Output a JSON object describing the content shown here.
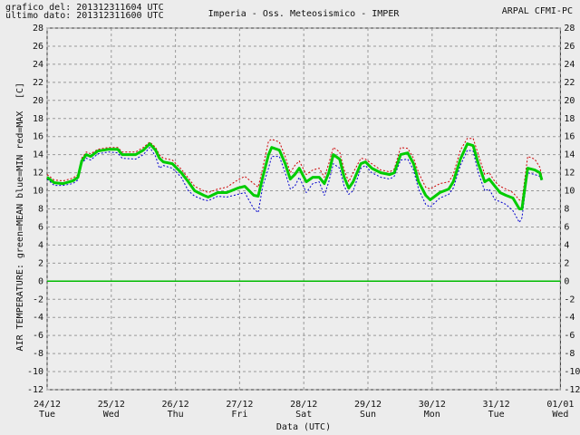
{
  "chart_data": {
    "type": "line",
    "title": "Imperia - Oss. Meteosismico - IMPER",
    "header_left": [
      "grafico del: 201312311604 UTC",
      "ultimo dato: 201312311600 UTC"
    ],
    "header_right": "ARPAL CFMI-PC",
    "y_label": "AIR TEMPERATURE: green=MEAN  blue=MIN  red=MAX",
    "y_unit": "[C]",
    "x_label": "Data (UTC)",
    "xlim": [
      0,
      8
    ],
    "xticks": [
      {
        "value": 0,
        "label": "24/12",
        "sublabel": "Tue"
      },
      {
        "value": 1,
        "label": "25/12",
        "sublabel": "Wed"
      },
      {
        "value": 2,
        "label": "26/12",
        "sublabel": "Thu"
      },
      {
        "value": 3,
        "label": "27/12",
        "sublabel": "Fri"
      },
      {
        "value": 4,
        "label": "28/12",
        "sublabel": "Sat"
      },
      {
        "value": 5,
        "label": "29/12",
        "sublabel": "Sun"
      },
      {
        "value": 6,
        "label": "30/12",
        "sublabel": "Mon"
      },
      {
        "value": 7,
        "label": "31/12",
        "sublabel": "Tue"
      },
      {
        "value": 8,
        "label": "01/01",
        "sublabel": "Wed"
      }
    ],
    "ylim": [
      -12,
      28
    ],
    "yticks": [
      -12,
      -10,
      -8,
      -6,
      -4,
      -2,
      0,
      2,
      4,
      6,
      8,
      10,
      12,
      14,
      16,
      18,
      20,
      22,
      24,
      26,
      28
    ],
    "grid": true,
    "reference_line": {
      "value": 0,
      "color": "#00bb00"
    },
    "x": [
      0,
      0.11,
      0.25,
      0.4,
      0.48,
      0.54,
      0.61,
      0.68,
      0.79,
      0.96,
      1.1,
      1.17,
      1.38,
      1.5,
      1.6,
      1.69,
      1.75,
      1.81,
      1.95,
      2.09,
      2.2,
      2.3,
      2.44,
      2.51,
      2.66,
      2.8,
      2.97,
      3.08,
      3.22,
      3.29,
      3.36,
      3.45,
      3.5,
      3.62,
      3.71,
      3.79,
      3.86,
      3.93,
      4.04,
      4.14,
      4.24,
      4.32,
      4.39,
      4.46,
      4.56,
      4.63,
      4.7,
      4.77,
      4.89,
      4.96,
      5.06,
      5.2,
      5.34,
      5.41,
      5.51,
      5.62,
      5.71,
      5.79,
      5.9,
      5.97,
      6.12,
      6.26,
      6.33,
      6.44,
      6.55,
      6.64,
      6.72,
      6.82,
      6.89,
      6.98,
      7.06,
      7.15,
      7.26,
      7.36,
      7.4,
      7.49,
      7.6,
      7.68,
      7.71
    ],
    "series": [
      {
        "name": "MEAN",
        "color": "#00cc00",
        "width": 3,
        "dash": "none",
        "values": [
          11.5,
          10.9,
          10.8,
          11.1,
          11.5,
          13.3,
          14.0,
          13.8,
          14.4,
          14.6,
          14.6,
          14.0,
          14.0,
          14.5,
          15.2,
          14.5,
          13.6,
          13.2,
          13.0,
          12.0,
          11.0,
          10.0,
          9.5,
          9.3,
          9.8,
          9.8,
          10.3,
          10.5,
          9.5,
          9.4,
          11.5,
          14.0,
          14.8,
          14.5,
          13.0,
          11.3,
          11.8,
          12.5,
          11.0,
          11.5,
          11.5,
          10.8,
          12.0,
          14.0,
          13.5,
          11.5,
          10.3,
          11.0,
          13.0,
          13.2,
          12.5,
          12.0,
          11.8,
          12.0,
          14.0,
          14.2,
          13.0,
          11.0,
          9.5,
          9.0,
          9.8,
          10.2,
          11.0,
          13.5,
          15.2,
          15.0,
          13.0,
          11.0,
          11.3,
          10.5,
          9.8,
          9.5,
          9.2,
          8.0,
          8.0,
          12.5,
          12.3,
          12.0,
          11.2
        ]
      },
      {
        "name": "MIN",
        "color": "#0000cc",
        "width": 1,
        "dash": "2 2",
        "values": [
          11.3,
          10.6,
          10.6,
          10.8,
          11.2,
          13.0,
          13.6,
          13.4,
          14.1,
          14.3,
          14.2,
          13.6,
          13.5,
          14.0,
          14.8,
          13.8,
          12.5,
          12.8,
          12.5,
          11.5,
          10.0,
          9.4,
          9.0,
          8.9,
          9.4,
          9.3,
          9.6,
          9.8,
          8.0,
          7.6,
          10.5,
          12.5,
          13.8,
          13.8,
          12.0,
          10.2,
          10.5,
          11.5,
          9.8,
          10.8,
          11.0,
          9.5,
          11.0,
          13.0,
          12.5,
          10.5,
          9.6,
          10.0,
          12.5,
          12.8,
          12.0,
          11.5,
          11.3,
          11.6,
          13.4,
          13.5,
          12.3,
          10.2,
          8.5,
          8.2,
          9.2,
          9.6,
          10.3,
          12.8,
          14.5,
          14.4,
          12.0,
          10.0,
          10.2,
          9.0,
          8.8,
          8.5,
          7.8,
          6.5,
          7.0,
          12.0,
          11.8,
          11.6,
          11.0
        ]
      },
      {
        "name": "MAX",
        "color": "#cc0000",
        "width": 1,
        "dash": "2 2",
        "values": [
          11.8,
          11.2,
          11.1,
          11.4,
          11.8,
          13.6,
          14.3,
          14.1,
          14.6,
          14.8,
          14.8,
          14.3,
          14.3,
          14.8,
          15.4,
          14.8,
          14.0,
          13.6,
          13.4,
          12.4,
          11.4,
          10.5,
          10.0,
          9.8,
          10.2,
          10.4,
          11.2,
          11.6,
          10.8,
          10.4,
          12.5,
          15.5,
          15.7,
          15.4,
          13.8,
          12.0,
          12.8,
          13.3,
          11.8,
          12.3,
          12.5,
          11.5,
          13.0,
          14.8,
          14.3,
          12.3,
          11.0,
          12.0,
          13.6,
          13.5,
          13.0,
          12.3,
          12.1,
          12.4,
          14.8,
          14.7,
          13.6,
          12.0,
          10.4,
          10.2,
          10.8,
          11.0,
          11.8,
          14.5,
          15.8,
          15.8,
          14.0,
          11.8,
          12.0,
          11.0,
          10.5,
          10.2,
          9.8,
          9.0,
          8.8,
          13.8,
          13.5,
          12.6,
          11.6
        ]
      }
    ]
  }
}
